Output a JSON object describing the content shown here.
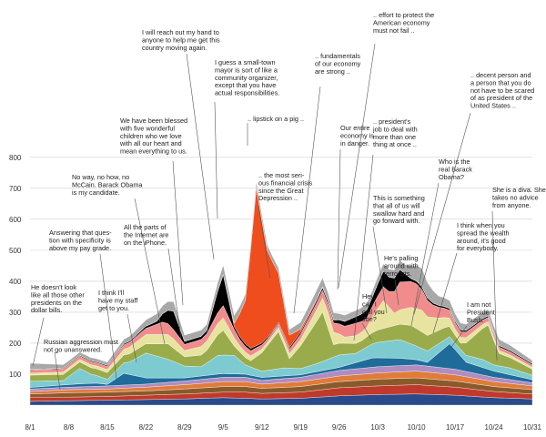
{
  "chart_data": {
    "type": "area",
    "stacked": "streamgraph",
    "title": "",
    "xlabel": "",
    "ylabel": "",
    "ylim": [
      0,
      820
    ],
    "yticks": [
      100,
      200,
      300,
      400,
      500,
      600,
      700,
      800
    ],
    "xticks": [
      "8/1",
      "8/8",
      "8/15",
      "8/22",
      "8/29",
      "9/5",
      "9/12",
      "9/19",
      "9/26",
      "10/3",
      "10/10",
      "10/17",
      "10/24",
      "10/31"
    ],
    "x_days": [
      1,
      92
    ],
    "grid": true,
    "series": [
      {
        "color": "#2b4a8a",
        "values": [
          [
            1,
            12
          ],
          [
            8,
            14
          ],
          [
            15,
            16
          ],
          [
            22,
            18
          ],
          [
            29,
            20
          ],
          [
            36,
            24
          ],
          [
            40,
            22
          ],
          [
            43,
            20
          ],
          [
            50,
            22
          ],
          [
            57,
            30
          ],
          [
            64,
            34
          ],
          [
            71,
            36
          ],
          [
            78,
            32
          ],
          [
            85,
            24
          ],
          [
            92,
            20
          ]
        ]
      },
      {
        "color": "#c0392b",
        "values": [
          [
            1,
            14
          ],
          [
            8,
            12
          ],
          [
            15,
            12
          ],
          [
            22,
            14
          ],
          [
            29,
            16
          ],
          [
            36,
            18
          ],
          [
            40,
            20
          ],
          [
            43,
            18
          ],
          [
            50,
            20
          ],
          [
            57,
            26
          ],
          [
            64,
            28
          ],
          [
            71,
            30
          ],
          [
            78,
            26
          ],
          [
            85,
            20
          ],
          [
            92,
            16
          ]
        ]
      },
      {
        "color": "#8a5a2b",
        "values": [
          [
            1,
            10
          ],
          [
            8,
            14
          ],
          [
            15,
            14
          ],
          [
            22,
            14
          ],
          [
            29,
            16
          ],
          [
            36,
            18
          ],
          [
            40,
            18
          ],
          [
            43,
            16
          ],
          [
            50,
            18
          ],
          [
            57,
            20
          ],
          [
            64,
            22
          ],
          [
            71,
            22
          ],
          [
            78,
            20
          ],
          [
            85,
            16
          ],
          [
            92,
            14
          ]
        ]
      },
      {
        "color": "#e07b3a",
        "values": [
          [
            1,
            8
          ],
          [
            8,
            10
          ],
          [
            15,
            10
          ],
          [
            22,
            12
          ],
          [
            29,
            14
          ],
          [
            36,
            16
          ],
          [
            40,
            16
          ],
          [
            43,
            14
          ],
          [
            50,
            16
          ],
          [
            57,
            18
          ],
          [
            64,
            20
          ],
          [
            71,
            22
          ],
          [
            78,
            20
          ],
          [
            85,
            16
          ],
          [
            92,
            12
          ]
        ]
      },
      {
        "color": "#b08cc0",
        "values": [
          [
            1,
            8
          ],
          [
            8,
            8
          ],
          [
            15,
            10
          ],
          [
            22,
            10
          ],
          [
            29,
            12
          ],
          [
            36,
            14
          ],
          [
            40,
            14
          ],
          [
            43,
            12
          ],
          [
            50,
            14
          ],
          [
            57,
            18
          ],
          [
            64,
            20
          ],
          [
            71,
            20
          ],
          [
            78,
            18
          ],
          [
            85,
            14
          ],
          [
            92,
            10
          ]
        ]
      },
      {
        "color": "#1f6b9a",
        "values": [
          [
            1,
            5
          ],
          [
            11,
            10
          ],
          [
            13,
            10
          ],
          [
            15,
            5
          ],
          [
            18,
            38
          ],
          [
            22,
            20
          ],
          [
            29,
            10
          ],
          [
            35,
            12
          ],
          [
            40,
            10
          ],
          [
            50,
            8
          ],
          [
            57,
            10
          ],
          [
            63,
            30
          ],
          [
            68,
            24
          ],
          [
            73,
            12
          ],
          [
            77,
            80
          ],
          [
            80,
            30
          ],
          [
            85,
            20
          ],
          [
            92,
            10
          ]
        ]
      },
      {
        "color": "#7dcbd0",
        "values": [
          [
            1,
            20
          ],
          [
            7,
            14
          ],
          [
            10,
            50
          ],
          [
            12,
            30
          ],
          [
            15,
            16
          ],
          [
            19,
            40
          ],
          [
            22,
            80
          ],
          [
            26,
            60
          ],
          [
            29,
            38
          ],
          [
            32,
            30
          ],
          [
            35,
            60
          ],
          [
            38,
            60
          ],
          [
            40,
            30
          ],
          [
            43,
            20
          ],
          [
            47,
            26
          ],
          [
            50,
            20
          ],
          [
            53,
            26
          ],
          [
            57,
            40
          ],
          [
            60,
            30
          ],
          [
            64,
            50
          ],
          [
            68,
            60
          ],
          [
            71,
            44
          ],
          [
            75,
            30
          ],
          [
            78,
            20
          ],
          [
            83,
            26
          ],
          [
            85,
            20
          ],
          [
            88,
            22
          ],
          [
            92,
            14
          ]
        ]
      },
      {
        "color": "#9aab4c",
        "values": [
          [
            1,
            20
          ],
          [
            8,
            20
          ],
          [
            15,
            22
          ],
          [
            22,
            30
          ],
          [
            26,
            50
          ],
          [
            29,
            30
          ],
          [
            33,
            40
          ],
          [
            36,
            80
          ],
          [
            38,
            30
          ],
          [
            41,
            20
          ],
          [
            46,
            120
          ],
          [
            48,
            30
          ],
          [
            54,
            160
          ],
          [
            56,
            40
          ],
          [
            61,
            30
          ],
          [
            64,
            40
          ],
          [
            68,
            50
          ],
          [
            70,
            60
          ],
          [
            73,
            50
          ],
          [
            76,
            40
          ],
          [
            79,
            20
          ],
          [
            84,
            120
          ],
          [
            86,
            40
          ],
          [
            92,
            20
          ]
        ]
      },
      {
        "color": "#e8e4a0",
        "values": [
          [
            1,
            6
          ],
          [
            8,
            8
          ],
          [
            15,
            10
          ],
          [
            22,
            30
          ],
          [
            27,
            30
          ],
          [
            29,
            20
          ],
          [
            33,
            30
          ],
          [
            36,
            40
          ],
          [
            39,
            20
          ],
          [
            44,
            10
          ],
          [
            50,
            20
          ],
          [
            55,
            50
          ],
          [
            58,
            20
          ],
          [
            62,
            30
          ],
          [
            65,
            90
          ],
          [
            67,
            40
          ],
          [
            72,
            70
          ],
          [
            75,
            40
          ],
          [
            78,
            20
          ],
          [
            85,
            10
          ],
          [
            92,
            6
          ]
        ]
      },
      {
        "color": "#f08c8c",
        "values": [
          [
            1,
            10
          ],
          [
            10,
            10
          ],
          [
            15,
            10
          ],
          [
            22,
            20
          ],
          [
            25,
            40
          ],
          [
            27,
            30
          ],
          [
            29,
            20
          ],
          [
            33,
            24
          ],
          [
            36,
            40
          ],
          [
            39,
            20
          ],
          [
            45,
            10
          ],
          [
            52,
            20
          ],
          [
            56,
            30
          ],
          [
            60,
            40
          ],
          [
            62,
            30
          ],
          [
            66,
            50
          ],
          [
            68,
            90
          ],
          [
            71,
            80
          ],
          [
            74,
            40
          ],
          [
            78,
            20
          ],
          [
            85,
            12
          ],
          [
            92,
            8
          ]
        ]
      },
      {
        "color": "#000000",
        "values": [
          [
            1,
            2
          ],
          [
            20,
            4
          ],
          [
            24,
            10
          ],
          [
            27,
            60
          ],
          [
            29,
            10
          ],
          [
            33,
            10
          ],
          [
            36,
            100
          ],
          [
            38,
            10
          ],
          [
            45,
            4
          ],
          [
            56,
            10
          ],
          [
            63,
            30
          ],
          [
            65,
            50
          ],
          [
            68,
            40
          ],
          [
            70,
            10
          ],
          [
            75,
            6
          ],
          [
            92,
            4
          ]
        ]
      },
      {
        "color": "#f04d1e",
        "values": [
          [
            1,
            0
          ],
          [
            36,
            0
          ],
          [
            38,
            10
          ],
          [
            40,
            140
          ],
          [
            42,
            510
          ],
          [
            44,
            280
          ],
          [
            46,
            160
          ],
          [
            48,
            40
          ],
          [
            50,
            10
          ],
          [
            55,
            0
          ],
          [
            92,
            0
          ]
        ]
      },
      {
        "color": "#a8a8a8",
        "values": [
          [
            1,
            20
          ],
          [
            8,
            10
          ],
          [
            15,
            10
          ],
          [
            22,
            20
          ],
          [
            27,
            30
          ],
          [
            29,
            20
          ],
          [
            33,
            20
          ],
          [
            36,
            30
          ],
          [
            40,
            20
          ],
          [
            47,
            16
          ],
          [
            54,
            30
          ],
          [
            57,
            20
          ],
          [
            63,
            20
          ],
          [
            69,
            30
          ],
          [
            72,
            60
          ],
          [
            75,
            30
          ],
          [
            80,
            20
          ],
          [
            86,
            20
          ],
          [
            92,
            10
          ]
        ]
      }
    ],
    "annotations": [
      {
        "text": [
          "He doesn't look",
          "like all those other",
          "presidents on the",
          "dollar bills."
        ]
      },
      {
        "text": [
          "Russian aggression must",
          "not go unanswered."
        ]
      },
      {
        "text": [
          "Answering that ques-",
          "tion with specificity is",
          "above my pay grade."
        ]
      },
      {
        "text": [
          "No way, no how, no",
          "McCain. Barack Obama",
          "is my candidate."
        ]
      },
      {
        "text": [
          "I think I'll",
          "have my staff",
          "get to you."
        ]
      },
      {
        "text": [
          "All the parts of",
          "the Internet are",
          "on the iPhone."
        ]
      },
      {
        "text": [
          "We have been blessed",
          "with five wonderful",
          "children who we love",
          "with all our heart and",
          "mean everything to us."
        ]
      },
      {
        "text": [
          "I will reach out my hand to",
          "anyone to help me get this",
          "country moving again."
        ]
      },
      {
        "text": [
          "I guess a small-town",
          "mayor is sort of like a",
          "community organizer,",
          "except that you have",
          "actual responsibilities."
        ]
      },
      {
        "text": [
          ".. lipstick on a pig .."
        ]
      },
      {
        "text": [
          ".. the most seri-",
          "ous financial crisis",
          "since the Great",
          "Depression .."
        ]
      },
      {
        "text": [
          ".. fundamentals",
          "of our economy",
          "are strong .."
        ]
      },
      {
        "text": [
          ".. effort to protect the",
          "American economy",
          "must not fail .."
        ]
      },
      {
        "text": [
          "Our entire",
          "economy is",
          "in danger."
        ]
      },
      {
        "text": [
          ".. president's",
          "job to deal with",
          "more than one",
          "thing at once .."
        ]
      },
      {
        "text": [
          "This is something",
          "that all of us will",
          "swallow hard and",
          "go forward with."
        ]
      },
      {
        "text": [
          "He's palling",
          "around with",
          "terrorists."
        ]
      },
      {
        "text": [
          "Hey,",
          "can I",
          "call you",
          "Joe?"
        ]
      },
      {
        "text": [
          "Who is the",
          "real Barack",
          "Obama?"
        ]
      },
      {
        "text": [
          ".. decent person and",
          "a person that you do",
          "not have to be scared",
          "of as president of the",
          "United States .."
        ]
      },
      {
        "text": [
          "I think when you",
          "spread the wealth",
          "around, it's good",
          "for everybody."
        ]
      },
      {
        "text": [
          "She is a diva. She",
          "takes no advice",
          "from anyone."
        ]
      },
      {
        "text": [
          "I am not",
          "President",
          "Bush."
        ]
      }
    ]
  }
}
